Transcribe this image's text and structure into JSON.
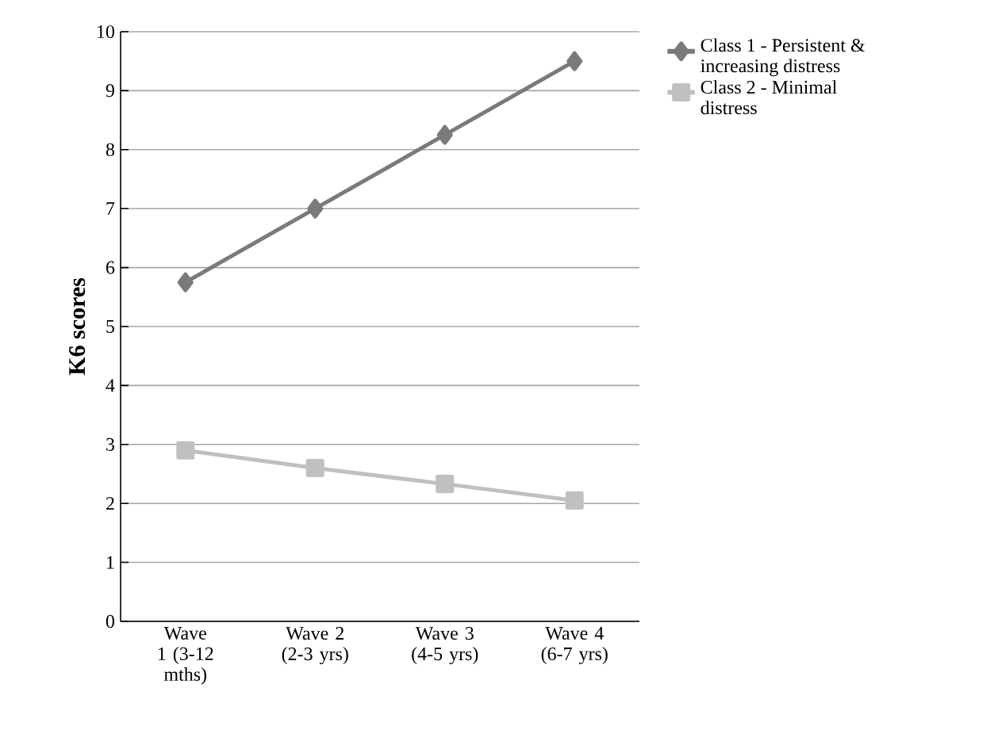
{
  "chart_data": {
    "type": "line",
    "ylabel": "K6 scores",
    "categories": [
      "Wave 1 (3-12 mths)",
      "Wave 2 (2-3 yrs)",
      "Wave 3 (4-5 yrs)",
      "Wave 4 (6-7 yrs)"
    ],
    "series": [
      {
        "name": "Class 1 - Persistent & increasing distress",
        "color": "#7a7a7a",
        "marker": "diamond",
        "values": [
          5.75,
          7.0,
          8.25,
          9.5
        ]
      },
      {
        "name": "Class 2 - Minimal distress",
        "color": "#c0c0c0",
        "marker": "square",
        "values": [
          2.9,
          2.6,
          2.33,
          2.05
        ]
      }
    ],
    "ylim": [
      0,
      10
    ],
    "yticks": [
      0,
      1,
      2,
      3,
      4,
      5,
      6,
      7,
      8,
      9,
      10
    ],
    "grid": "y",
    "legend": "top right",
    "line_style": "solid"
  }
}
